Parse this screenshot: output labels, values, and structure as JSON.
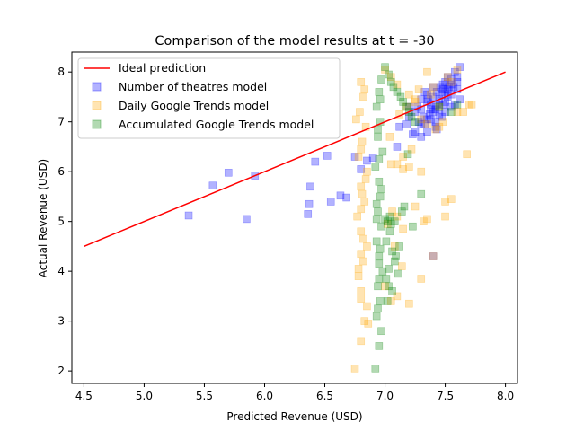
{
  "chart_data": {
    "type": "scatter",
    "title": "Comparison of the model results at t = -30",
    "xlabel": "Predicted Revenue (USD)",
    "ylabel": "Actual Revenue (USD)",
    "xlim": [
      4.4,
      8.1
    ],
    "ylim": [
      1.75,
      8.4
    ],
    "xticks": [
      4.5,
      5.0,
      5.5,
      6.0,
      6.5,
      7.0,
      7.5,
      8.0
    ],
    "yticks": [
      2,
      3,
      4,
      5,
      6,
      7,
      8
    ],
    "xtick_labels": [
      "4.5",
      "5.0",
      "5.5",
      "6.0",
      "6.5",
      "7.0",
      "7.5",
      "8.0"
    ],
    "ytick_labels": [
      "2",
      "3",
      "4",
      "5",
      "6",
      "7",
      "8"
    ],
    "grid": false,
    "legend_position": "top-left",
    "ideal_line": {
      "name": "Ideal prediction",
      "color": "#ff0000",
      "x": [
        4.5,
        8.0
      ],
      "y": [
        4.5,
        8.0
      ]
    },
    "series": [
      {
        "name": "Number of theatres model",
        "color": "#0000ff",
        "x": [
          5.37,
          5.57,
          5.7,
          5.85,
          5.92,
          6.36,
          6.37,
          6.38,
          6.42,
          6.52,
          6.55,
          6.63,
          6.68,
          6.75,
          6.8,
          6.85,
          6.9,
          7.1,
          7.12,
          7.18,
          7.2,
          7.23,
          7.25,
          7.28,
          7.3,
          7.3,
          7.32,
          7.33,
          7.35,
          7.35,
          7.37,
          7.38,
          7.38,
          7.4,
          7.4,
          7.42,
          7.42,
          7.43,
          7.45,
          7.45,
          7.46,
          7.47,
          7.48,
          7.48,
          7.5,
          7.5,
          7.5,
          7.52,
          7.52,
          7.53,
          7.55,
          7.55,
          7.55,
          7.57,
          7.58,
          7.6,
          7.6,
          7.62,
          7.62,
          7.35,
          7.38,
          7.42,
          7.45,
          7.48,
          7.52,
          7.33,
          7.36,
          7.4,
          7.43,
          7.47,
          7.5,
          7.55,
          7.58,
          7.6,
          7.2,
          7.25,
          7.3,
          7.27,
          7.3,
          7.35,
          7.42,
          7.4
        ],
        "y": [
          5.12,
          5.72,
          5.98,
          5.05,
          5.92,
          5.15,
          5.35,
          5.7,
          6.2,
          6.32,
          5.4,
          5.52,
          5.48,
          6.3,
          6.05,
          6.22,
          6.28,
          6.5,
          6.9,
          6.95,
          7.3,
          6.75,
          6.8,
          7.0,
          6.7,
          7.25,
          7.1,
          6.95,
          7.4,
          6.8,
          7.15,
          7.05,
          7.35,
          7.2,
          7.5,
          7.3,
          7.0,
          7.6,
          7.45,
          7.15,
          7.7,
          7.55,
          7.35,
          7.75,
          7.6,
          7.2,
          7.8,
          7.5,
          7.65,
          7.7,
          7.55,
          7.85,
          7.3,
          7.7,
          8.0,
          7.8,
          7.65,
          8.1,
          7.45,
          7.05,
          7.25,
          6.9,
          7.35,
          7.65,
          7.9,
          7.6,
          7.45,
          7.7,
          6.85,
          7.1,
          7.4,
          7.75,
          7.35,
          7.9,
          7.1,
          7.2,
          6.95,
          7.3,
          7.45,
          7.55,
          7.25,
          4.3
        ],
        "opacity": 0.3
      },
      {
        "name": "Daily Google Trends model",
        "color": "#ffa500",
        "x": [
          6.75,
          6.8,
          6.83,
          6.85,
          6.8,
          6.78,
          6.82,
          6.85,
          6.8,
          6.77,
          6.83,
          6.8,
          6.85,
          6.78,
          6.81,
          6.84,
          6.79,
          6.82,
          6.8,
          6.86,
          6.8,
          6.78,
          6.82,
          6.8,
          6.84,
          6.8,
          6.76,
          6.83,
          6.8,
          6.81,
          7.0,
          7.05,
          7.1,
          7.15,
          7.2,
          7.25,
          7.3,
          7.35,
          7.4,
          7.45,
          7.5,
          7.55,
          7.6,
          7.65,
          7.7,
          7.05,
          7.1,
          7.2,
          7.3,
          7.4,
          7.5,
          7.55,
          7.1,
          7.15,
          7.25,
          7.35,
          7.45,
          7.0,
          7.02,
          7.04,
          7.06,
          7.08,
          7.12,
          7.14,
          7.18,
          7.22,
          7.28,
          7.32,
          7.38,
          7.42,
          7.48,
          7.52,
          7.6,
          7.68,
          7.72,
          7.05,
          7.15,
          7.25,
          7.35,
          7.1,
          7.2,
          7.3
        ],
        "y": [
          2.05,
          2.6,
          3.0,
          3.3,
          3.6,
          3.9,
          4.2,
          4.5,
          4.8,
          5.1,
          5.4,
          5.7,
          6.0,
          6.3,
          6.6,
          6.9,
          7.2,
          7.5,
          7.8,
          2.95,
          3.45,
          4.05,
          4.65,
          5.25,
          5.85,
          6.45,
          7.05,
          7.65,
          4.35,
          5.55,
          8.05,
          7.9,
          6.15,
          6.3,
          6.1,
          7.4,
          6.0,
          8.0,
          7.7,
          7.3,
          5.4,
          7.8,
          8.05,
          7.2,
          7.35,
          3.4,
          3.5,
          3.35,
          3.85,
          4.3,
          5.1,
          5.45,
          5.1,
          4.85,
          5.3,
          5.05,
          6.9,
          3.7,
          4.95,
          6.7,
          5.2,
          4.5,
          7.15,
          4.1,
          7.3,
          6.45,
          7.65,
          5.0,
          7.55,
          6.85,
          7.0,
          7.9,
          7.2,
          6.35,
          7.35,
          6.15,
          6.05,
          7.45,
          6.95,
          7.75,
          7.55,
          7.05
        ],
        "opacity": 0.3
      },
      {
        "name": "Accumulated Google Trends model",
        "color": "#008000",
        "x": [
          6.92,
          6.95,
          6.97,
          6.93,
          6.96,
          6.94,
          6.98,
          6.95,
          6.93,
          6.97,
          6.94,
          6.96,
          6.95,
          6.92,
          6.98,
          6.94,
          6.96,
          6.93,
          6.95,
          6.97,
          6.94,
          6.95,
          6.96,
          6.93,
          6.97,
          6.95,
          6.94,
          6.96,
          6.95,
          6.93,
          7.0,
          7.03,
          7.05,
          7.07,
          7.1,
          7.13,
          7.15,
          7.18,
          7.2,
          7.22,
          7.25,
          7.02,
          7.06,
          7.08,
          7.12,
          7.04,
          7.09,
          7.01,
          7.03,
          7.05,
          7.0,
          7.02,
          7.04,
          7.06,
          7.11,
          7.14,
          7.16,
          7.19,
          7.23,
          7.3,
          7.45,
          7.55,
          7.6,
          7.01,
          7.03,
          7.08
        ],
        "y": [
          2.05,
          2.5,
          2.8,
          3.1,
          3.4,
          3.7,
          4.0,
          4.3,
          4.6,
          4.9,
          5.2,
          5.5,
          5.8,
          6.1,
          6.4,
          6.7,
          7.0,
          7.3,
          7.6,
          7.85,
          3.25,
          3.85,
          4.45,
          5.05,
          5.65,
          6.25,
          6.85,
          7.45,
          4.15,
          5.35,
          8.1,
          7.95,
          7.8,
          7.7,
          7.6,
          7.5,
          7.4,
          7.3,
          7.2,
          7.1,
          7.0,
          3.4,
          3.6,
          4.2,
          4.5,
          5.1,
          4.3,
          3.85,
          4.05,
          4.95,
          5.05,
          5.0,
          4.8,
          4.4,
          3.95,
          5.2,
          5.3,
          6.35,
          4.9,
          5.55,
          7.3,
          7.2,
          7.35,
          4.6,
          3.7,
          5.0
        ],
        "opacity": 0.3
      }
    ]
  }
}
